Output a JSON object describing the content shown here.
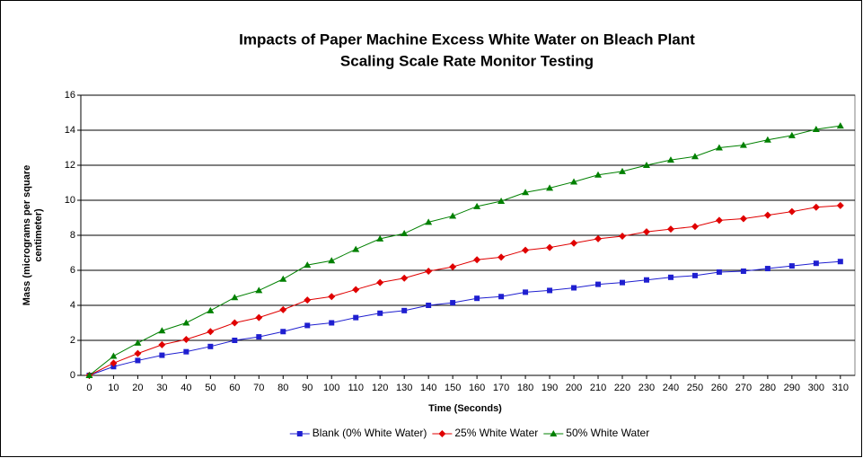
{
  "chart_data": {
    "type": "line",
    "title": [
      "Impacts of Paper Machine Excess White Water on  Bleach Plant",
      "Scaling Scale Rate Monitor Testing"
    ],
    "x_label": "Time (Seconds)",
    "y_label": [
      "Mass (micrograms per square",
      "centimeter)"
    ],
    "x": [
      0,
      10,
      20,
      30,
      40,
      50,
      60,
      70,
      80,
      90,
      100,
      110,
      120,
      130,
      140,
      150,
      160,
      170,
      180,
      190,
      200,
      210,
      220,
      230,
      240,
      250,
      260,
      270,
      280,
      290,
      300,
      310
    ],
    "series": [
      {
        "name": "Blank (0% White Water)",
        "color": "#1f1fd0",
        "marker": "square",
        "values": [
          0,
          0.5,
          0.85,
          1.15,
          1.35,
          1.65,
          2.0,
          2.2,
          2.5,
          2.85,
          3.0,
          3.3,
          3.55,
          3.7,
          4.0,
          4.15,
          4.4,
          4.5,
          4.75,
          4.85,
          5.0,
          5.2,
          5.3,
          5.45,
          5.6,
          5.7,
          5.9,
          5.95,
          6.1,
          6.25,
          6.4,
          6.5
        ]
      },
      {
        "name": "25% White Water",
        "color": "#e00000",
        "marker": "diamond",
        "values": [
          0,
          0.7,
          1.25,
          1.75,
          2.05,
          2.5,
          3.0,
          3.3,
          3.75,
          4.3,
          4.5,
          4.9,
          5.3,
          5.55,
          5.95,
          6.2,
          6.6,
          6.75,
          7.15,
          7.3,
          7.55,
          7.8,
          7.95,
          8.2,
          8.35,
          8.5,
          8.85,
          8.95,
          9.15,
          9.35,
          9.6,
          9.7
        ]
      },
      {
        "name": "50% White Water",
        "color": "#008000",
        "marker": "triangle",
        "values": [
          0,
          1.1,
          1.85,
          2.55,
          3.0,
          3.7,
          4.45,
          4.85,
          5.5,
          6.3,
          6.55,
          7.2,
          7.8,
          8.1,
          8.75,
          9.1,
          9.65,
          9.95,
          10.45,
          10.7,
          11.05,
          11.45,
          11.65,
          12.0,
          12.3,
          12.5,
          13.0,
          13.15,
          13.45,
          13.7,
          14.05,
          14.25
        ]
      }
    ],
    "xlim": [
      -3.5,
      316
    ],
    "xticks": [
      0,
      10,
      20,
      30,
      40,
      50,
      60,
      70,
      80,
      90,
      100,
      110,
      120,
      130,
      140,
      150,
      160,
      170,
      180,
      190,
      200,
      210,
      220,
      230,
      240,
      250,
      260,
      270,
      280,
      290,
      300,
      310
    ],
    "ylim": [
      0,
      16
    ],
    "yticks": [
      0,
      2,
      4,
      6,
      8,
      10,
      12,
      14,
      16
    ],
    "grid": true,
    "legend": "bottom"
  }
}
